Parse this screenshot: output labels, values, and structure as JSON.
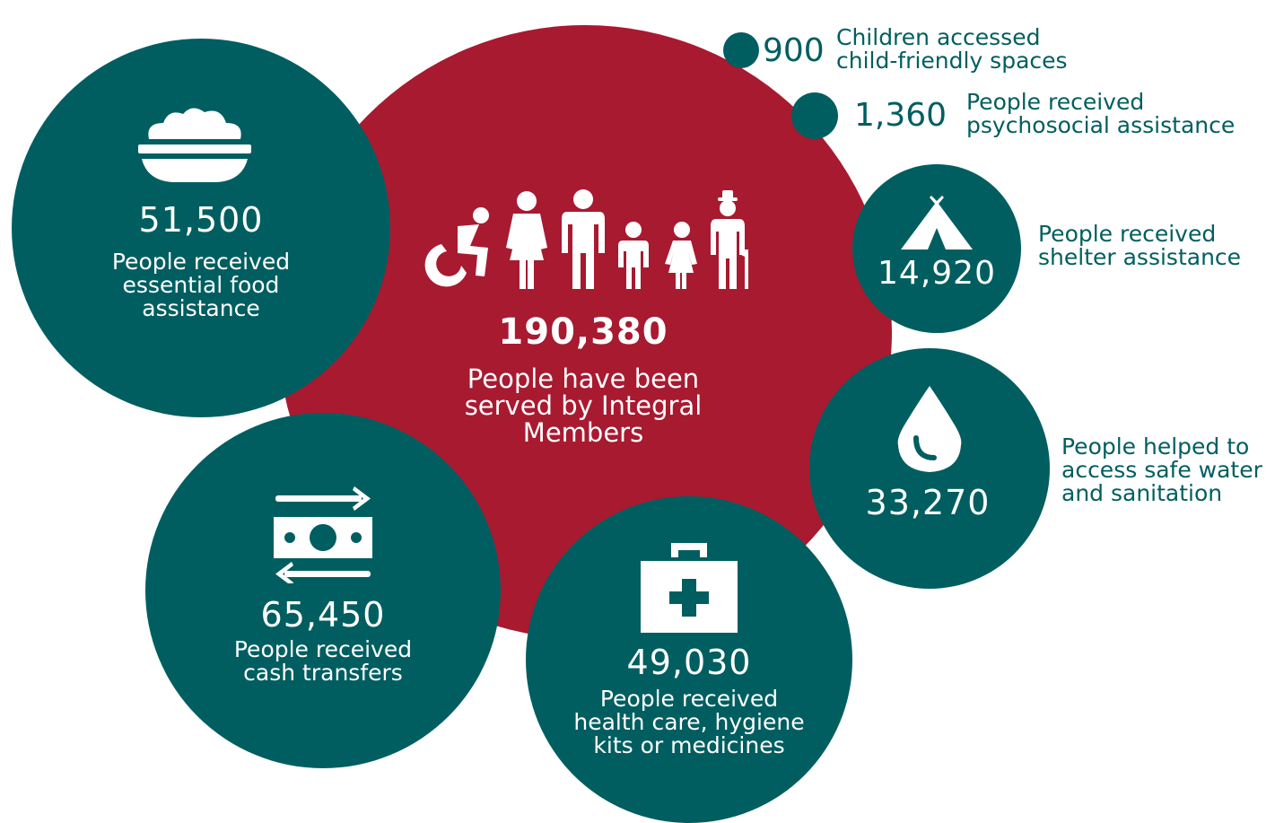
{
  "colors": {
    "red": "#a81a30",
    "teal": "#015e60",
    "text_on_circle": "#ffffff",
    "background": "#ffffff"
  },
  "central": {
    "value": "190,380",
    "label_lines": [
      "People have been",
      "served by Integral",
      "Members"
    ],
    "icon": "people-group-icon"
  },
  "food": {
    "value": "51,500",
    "label_lines": [
      "People received",
      "essential food",
      "assistance"
    ],
    "icon": "food-bowl-icon"
  },
  "cash": {
    "value": "65,450",
    "label_lines": [
      "People received",
      "cash transfers"
    ],
    "icon": "cash-transfer-icon"
  },
  "health": {
    "value": "49,030",
    "label_lines": [
      "People received",
      "health care, hygiene",
      "kits or medicines"
    ],
    "icon": "first-aid-kit-icon"
  },
  "water": {
    "value": "33,270",
    "label_lines": [
      "People helped to",
      "access safe water",
      "and sanitation"
    ],
    "icon": "water-drop-icon"
  },
  "shelter": {
    "value": "14,920",
    "label_lines": [
      "People received",
      "shelter assistance"
    ],
    "icon": "tent-icon"
  },
  "psychosocial": {
    "value": "1,360",
    "label_lines": [
      "People received",
      "psychosocial assistance"
    ]
  },
  "children": {
    "value": "900",
    "label_lines": [
      "Children accessed",
      "child-friendly spaces"
    ]
  }
}
